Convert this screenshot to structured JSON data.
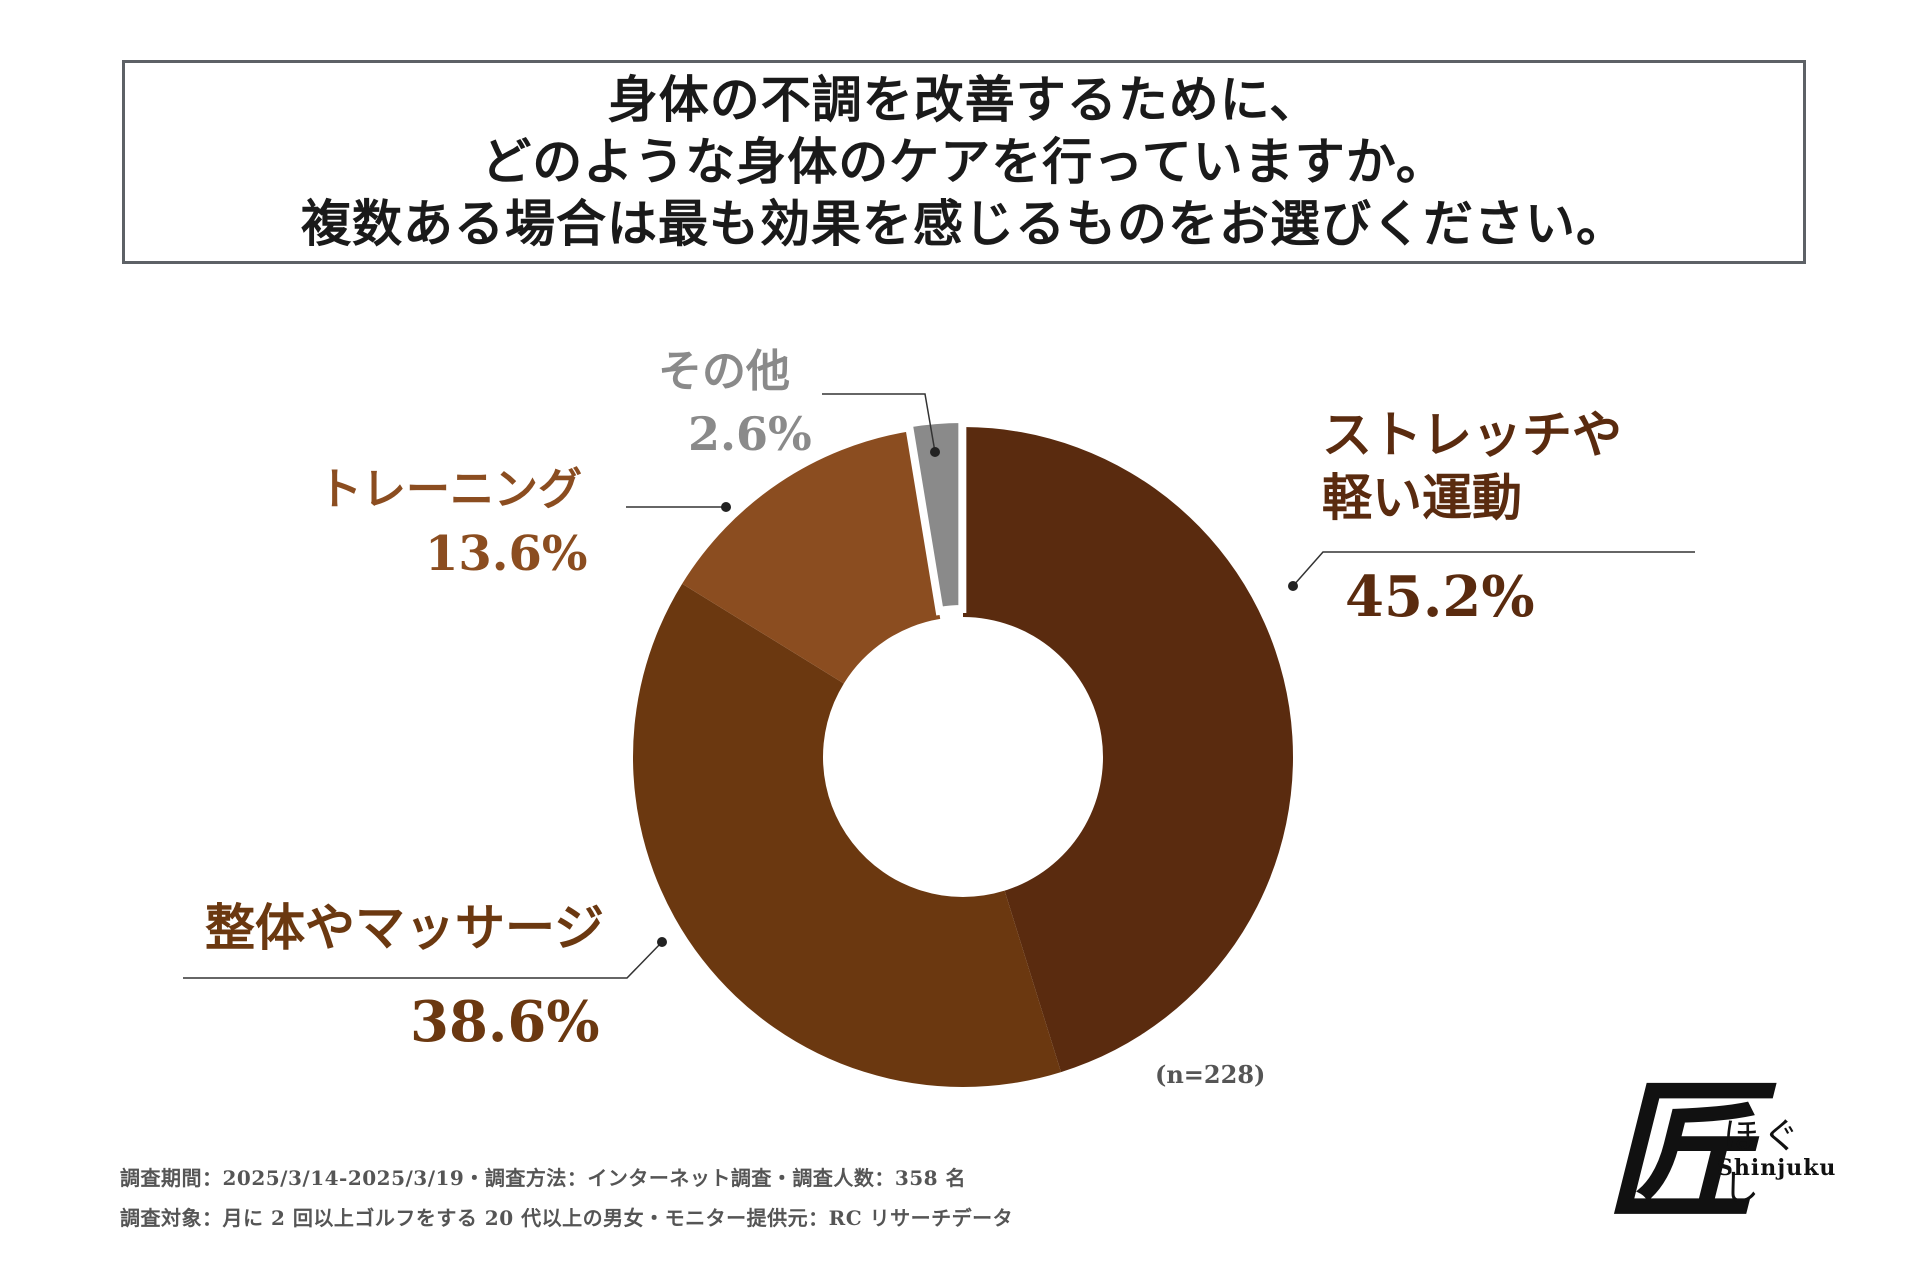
{
  "title": {
    "line1": "身体の不調を改善するために、",
    "line2": "どのような身体のケアを行っていますか。",
    "line3": "複数ある場合は最も効果を感じるものをお選びください。"
  },
  "chart_data": {
    "type": "pie",
    "donut": true,
    "start": "top, clockwise",
    "slices": [
      {
        "label_line1": "ストレッチや",
        "label_line2": "軽い運動",
        "value": 45.2,
        "value_text": "45.2%",
        "color": "#5a2b0f"
      },
      {
        "label_line1": "整体やマッサージ",
        "value": 38.6,
        "value_text": "38.6%",
        "color": "#6b3810"
      },
      {
        "label_line1": "トレーニング",
        "value": 13.6,
        "value_text": "13.6%",
        "color": "#8b4d20"
      },
      {
        "label_line1": "その他",
        "value": 2.6,
        "value_text": "2.6%",
        "color": "#8a8a8a"
      }
    ],
    "sample_note": "(n=228)"
  },
  "footer": {
    "line1": "調査期間：2025/3/14-2025/3/19・調査方法：インターネット調査・調査人数：358 名",
    "line2": "調査対象：月に 2 回以上ゴルフをする 20 代以上の男女・モニター提供元：RC リサーチデータ"
  },
  "logo": {
    "kanji": "匠",
    "kana": "ほぐし",
    "en": "Shinjuku"
  },
  "colors": {
    "label_stretch": "#5a2b0f",
    "label_massage": "#6b3810",
    "label_training": "#8b4d20",
    "label_other": "#8a8a8a"
  }
}
